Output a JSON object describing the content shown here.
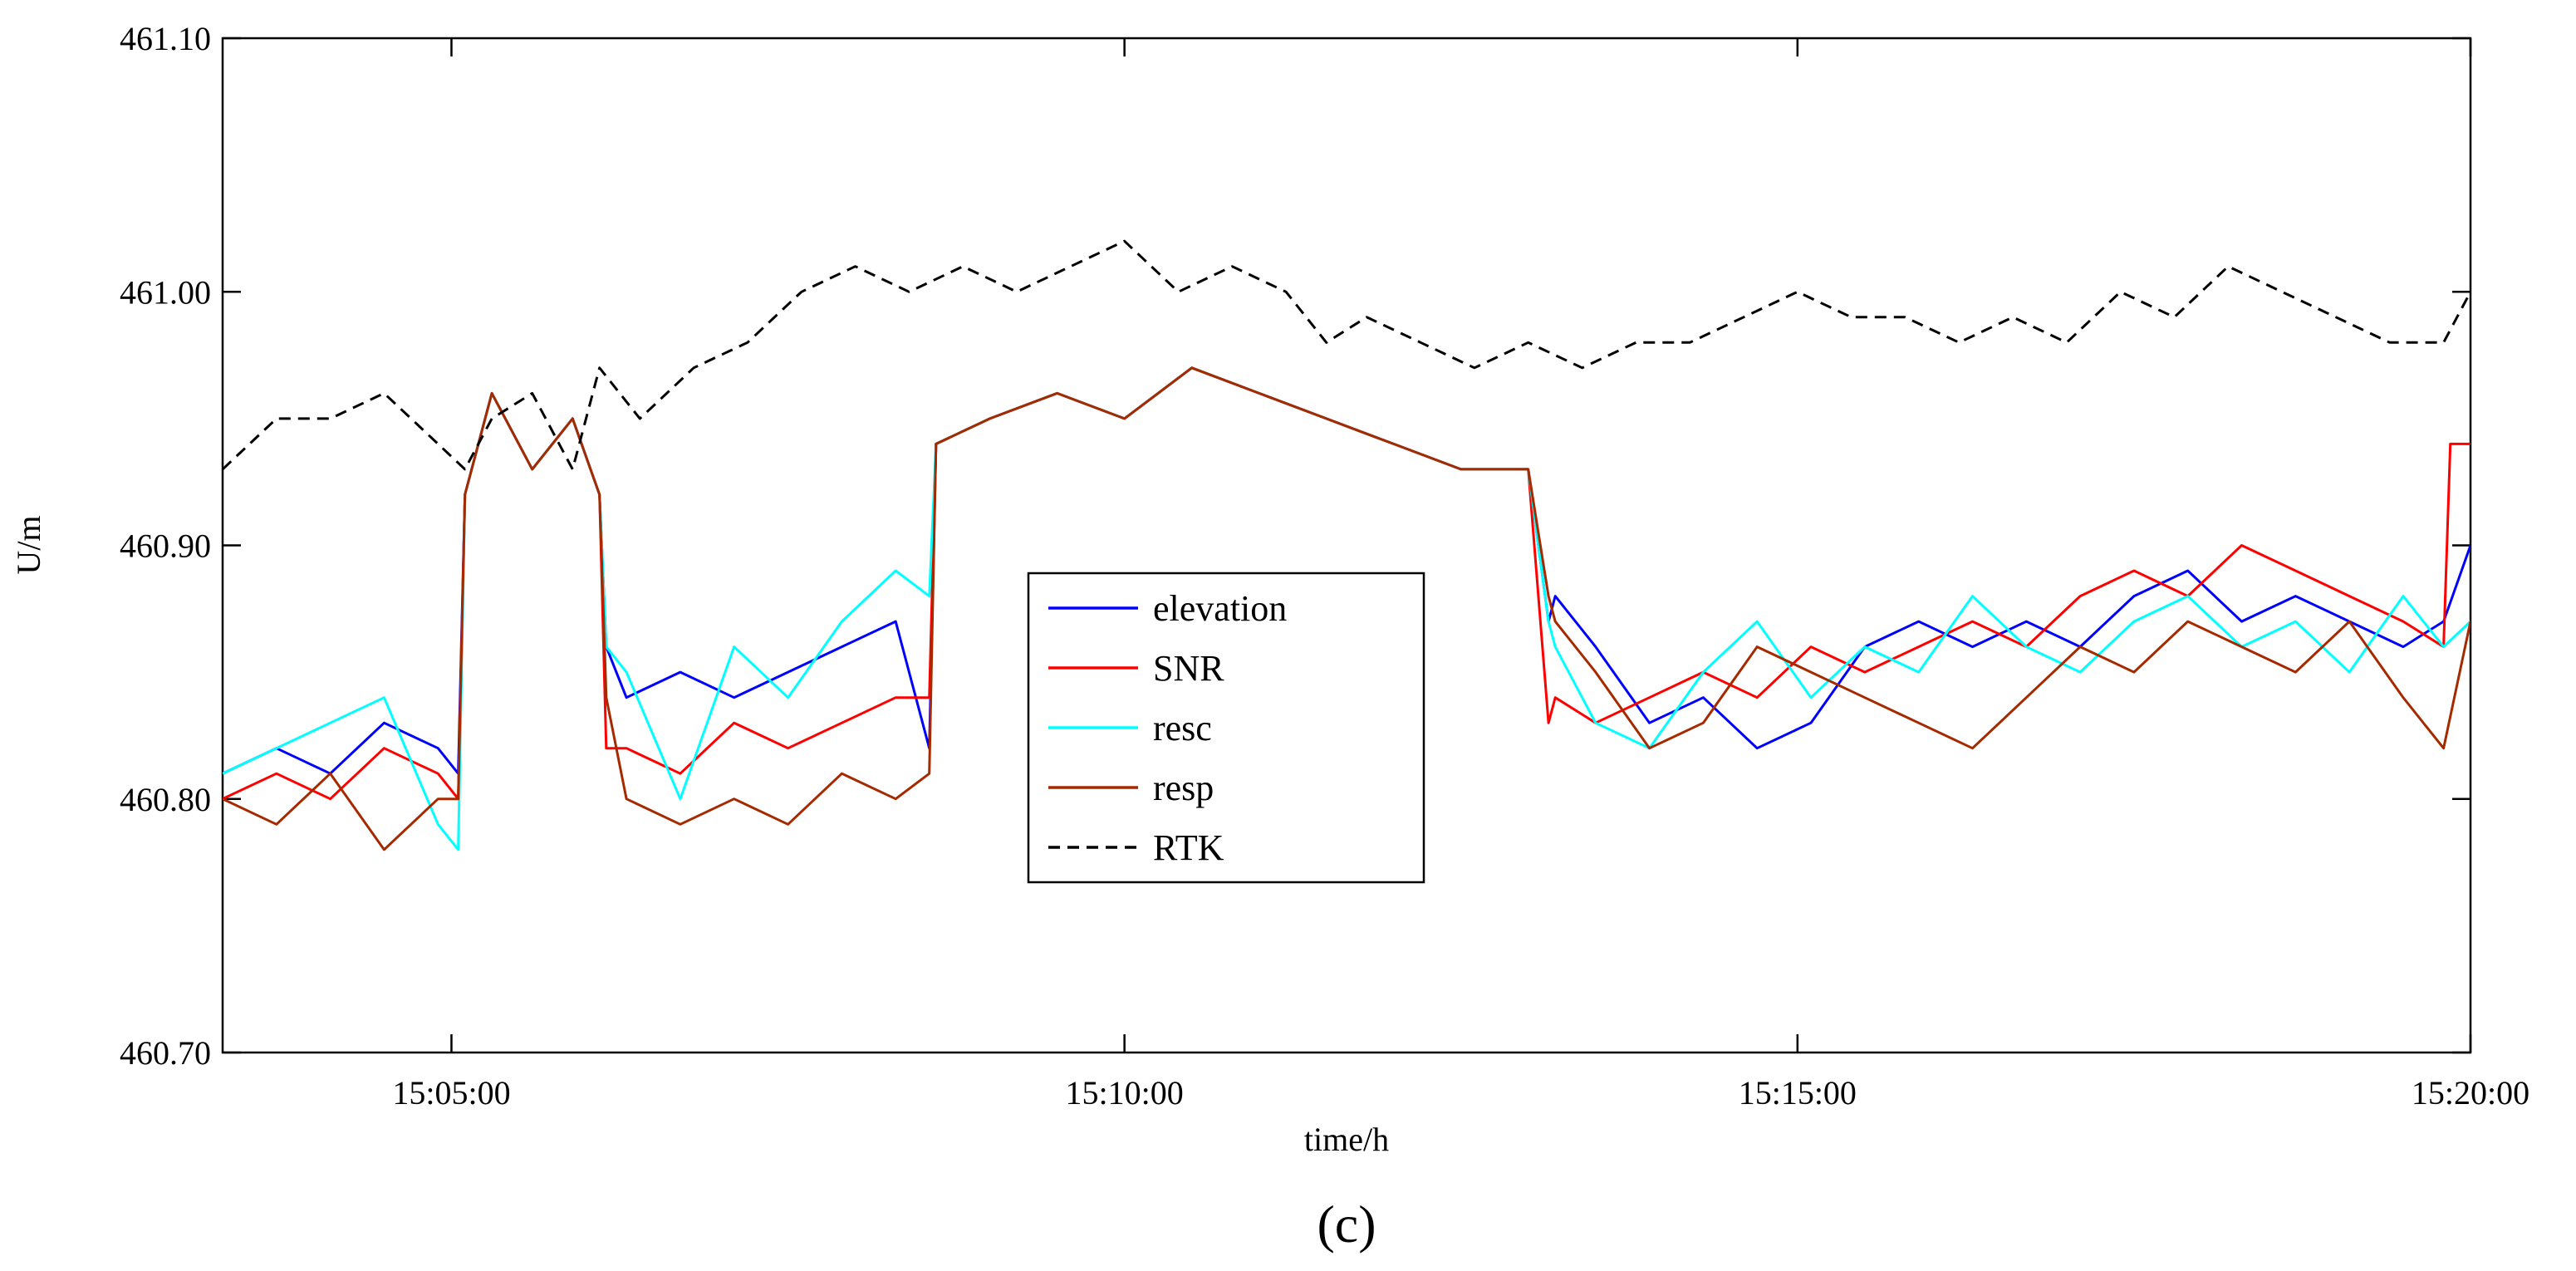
{
  "chart_data": {
    "type": "line",
    "title": "",
    "panel_label": "(c)",
    "xlabel": "time/h",
    "ylabel": "U/m",
    "x_unit": "minutes after 15:00:00",
    "xlim": [
      3.3,
      20.0
    ],
    "ylim": [
      460.7,
      461.1
    ],
    "grid": false,
    "legend_position": "center",
    "x_ticks": [
      {
        "value": 5,
        "label": "15:05:00"
      },
      {
        "value": 10,
        "label": "15:10:00"
      },
      {
        "value": 15,
        "label": "15:15:00"
      },
      {
        "value": 20,
        "label": "15:20:00"
      }
    ],
    "y_ticks": [
      {
        "value": 460.7,
        "label": "460.70"
      },
      {
        "value": 460.8,
        "label": "460.80"
      },
      {
        "value": 460.9,
        "label": "460.90"
      },
      {
        "value": 461.0,
        "label": "461.00"
      },
      {
        "value": 461.1,
        "label": "461.10"
      }
    ],
    "series": [
      {
        "name": "elevation",
        "color": "#0000ff",
        "style": "solid",
        "x": [
          3.3,
          3.7,
          4.1,
          4.5,
          4.9,
          5.05,
          5.1,
          5.3,
          5.6,
          5.9,
          6.1,
          6.15,
          6.3,
          6.7,
          7.1,
          7.5,
          7.9,
          8.3,
          8.55,
          8.6,
          9.0,
          9.5,
          10.0,
          10.5,
          11.0,
          11.5,
          12.0,
          12.5,
          13.0,
          13.15,
          13.2,
          13.5,
          13.9,
          14.3,
          14.7,
          15.1,
          15.5,
          15.9,
          16.3,
          16.7,
          17.1,
          17.5,
          17.9,
          18.3,
          18.7,
          19.1,
          19.5,
          19.8,
          20.0
        ],
        "y": [
          460.81,
          460.82,
          460.81,
          460.83,
          460.82,
          460.81,
          460.92,
          460.96,
          460.93,
          460.95,
          460.92,
          460.86,
          460.84,
          460.85,
          460.84,
          460.85,
          460.86,
          460.87,
          460.82,
          460.94,
          460.95,
          460.96,
          460.95,
          460.97,
          460.96,
          460.95,
          460.94,
          460.93,
          460.93,
          460.87,
          460.88,
          460.86,
          460.83,
          460.84,
          460.82,
          460.83,
          460.86,
          460.87,
          460.86,
          460.87,
          460.86,
          460.88,
          460.89,
          460.87,
          460.88,
          460.87,
          460.86,
          460.87,
          460.9
        ]
      },
      {
        "name": "SNR",
        "color": "#ff0000",
        "style": "solid",
        "x": [
          3.3,
          3.7,
          4.1,
          4.5,
          4.9,
          5.05,
          5.1,
          5.3,
          5.6,
          5.9,
          6.1,
          6.15,
          6.3,
          6.7,
          7.1,
          7.5,
          7.9,
          8.3,
          8.55,
          8.6,
          9.0,
          9.5,
          10.0,
          10.5,
          11.0,
          11.5,
          12.0,
          12.5,
          13.0,
          13.15,
          13.2,
          13.5,
          13.9,
          14.3,
          14.7,
          15.1,
          15.5,
          15.9,
          16.3,
          16.7,
          17.1,
          17.5,
          17.9,
          18.3,
          18.7,
          19.1,
          19.5,
          19.8,
          19.85,
          20.0
        ],
        "y": [
          460.8,
          460.81,
          460.8,
          460.82,
          460.81,
          460.8,
          460.92,
          460.96,
          460.93,
          460.95,
          460.92,
          460.82,
          460.82,
          460.81,
          460.83,
          460.82,
          460.83,
          460.84,
          460.84,
          460.94,
          460.95,
          460.96,
          460.95,
          460.97,
          460.96,
          460.95,
          460.94,
          460.93,
          460.93,
          460.83,
          460.84,
          460.83,
          460.84,
          460.85,
          460.84,
          460.86,
          460.85,
          460.86,
          460.87,
          460.86,
          460.88,
          460.89,
          460.88,
          460.9,
          460.89,
          460.88,
          460.87,
          460.86,
          460.94,
          460.94
        ]
      },
      {
        "name": "resc",
        "color": "#00ffff",
        "style": "solid",
        "x": [
          3.3,
          3.7,
          4.1,
          4.5,
          4.9,
          5.05,
          5.1,
          5.3,
          5.6,
          5.9,
          6.1,
          6.15,
          6.3,
          6.7,
          7.1,
          7.5,
          7.9,
          8.3,
          8.55,
          8.6,
          9.0,
          9.5,
          10.0,
          10.5,
          11.0,
          11.5,
          12.0,
          12.5,
          13.0,
          13.15,
          13.2,
          13.5,
          13.9,
          14.3,
          14.7,
          15.1,
          15.5,
          15.9,
          16.3,
          16.7,
          17.1,
          17.5,
          17.9,
          18.3,
          18.7,
          19.1,
          19.5,
          19.8,
          20.0
        ],
        "y": [
          460.81,
          460.82,
          460.83,
          460.84,
          460.79,
          460.78,
          460.92,
          460.96,
          460.93,
          460.95,
          460.92,
          460.86,
          460.85,
          460.8,
          460.86,
          460.84,
          460.87,
          460.89,
          460.88,
          460.94,
          460.95,
          460.96,
          460.95,
          460.97,
          460.96,
          460.95,
          460.94,
          460.93,
          460.93,
          460.87,
          460.86,
          460.83,
          460.82,
          460.85,
          460.87,
          460.84,
          460.86,
          460.85,
          460.88,
          460.86,
          460.85,
          460.87,
          460.88,
          460.86,
          460.87,
          460.85,
          460.88,
          460.86,
          460.87
        ]
      },
      {
        "name": "resp",
        "color": "#a52a00",
        "style": "solid",
        "x": [
          3.3,
          3.7,
          4.1,
          4.5,
          4.9,
          5.05,
          5.1,
          5.3,
          5.6,
          5.9,
          6.1,
          6.15,
          6.3,
          6.7,
          7.1,
          7.5,
          7.9,
          8.3,
          8.55,
          8.6,
          9.0,
          9.5,
          10.0,
          10.5,
          11.0,
          11.5,
          12.0,
          12.5,
          13.0,
          13.15,
          13.2,
          13.5,
          13.9,
          14.3,
          14.7,
          15.1,
          15.5,
          15.9,
          16.3,
          16.7,
          17.1,
          17.5,
          17.9,
          18.3,
          18.7,
          19.1,
          19.5,
          19.8,
          20.0
        ],
        "y": [
          460.8,
          460.79,
          460.81,
          460.78,
          460.8,
          460.8,
          460.92,
          460.96,
          460.93,
          460.95,
          460.92,
          460.84,
          460.8,
          460.79,
          460.8,
          460.79,
          460.81,
          460.8,
          460.81,
          460.94,
          460.95,
          460.96,
          460.95,
          460.97,
          460.96,
          460.95,
          460.94,
          460.93,
          460.93,
          460.88,
          460.87,
          460.85,
          460.82,
          460.83,
          460.86,
          460.85,
          460.84,
          460.83,
          460.82,
          460.84,
          460.86,
          460.85,
          460.87,
          460.86,
          460.85,
          460.87,
          460.84,
          460.82,
          460.87
        ]
      },
      {
        "name": "RTK",
        "color": "#000000",
        "style": "dashed",
        "x": [
          3.3,
          3.7,
          4.1,
          4.5,
          4.9,
          5.1,
          5.3,
          5.6,
          5.9,
          6.1,
          6.4,
          6.8,
          7.2,
          7.6,
          8.0,
          8.4,
          8.8,
          9.2,
          9.6,
          10.0,
          10.4,
          10.8,
          11.2,
          11.5,
          11.8,
          12.2,
          12.6,
          13.0,
          13.4,
          13.8,
          14.2,
          14.6,
          15.0,
          15.4,
          15.8,
          16.2,
          16.6,
          17.0,
          17.4,
          17.8,
          18.2,
          18.6,
          19.0,
          19.4,
          19.8,
          20.0
        ],
        "y": [
          460.93,
          460.95,
          460.95,
          460.96,
          460.94,
          460.93,
          460.95,
          460.96,
          460.93,
          460.97,
          460.95,
          460.97,
          460.98,
          461.0,
          461.01,
          461.0,
          461.01,
          461.0,
          461.01,
          461.02,
          461.0,
          461.01,
          461.0,
          460.98,
          460.99,
          460.98,
          460.97,
          460.98,
          460.97,
          460.98,
          460.98,
          460.99,
          461.0,
          460.99,
          460.99,
          460.98,
          460.99,
          460.98,
          461.0,
          460.99,
          461.01,
          461.0,
          460.99,
          460.98,
          460.98,
          461.0
        ]
      }
    ]
  }
}
